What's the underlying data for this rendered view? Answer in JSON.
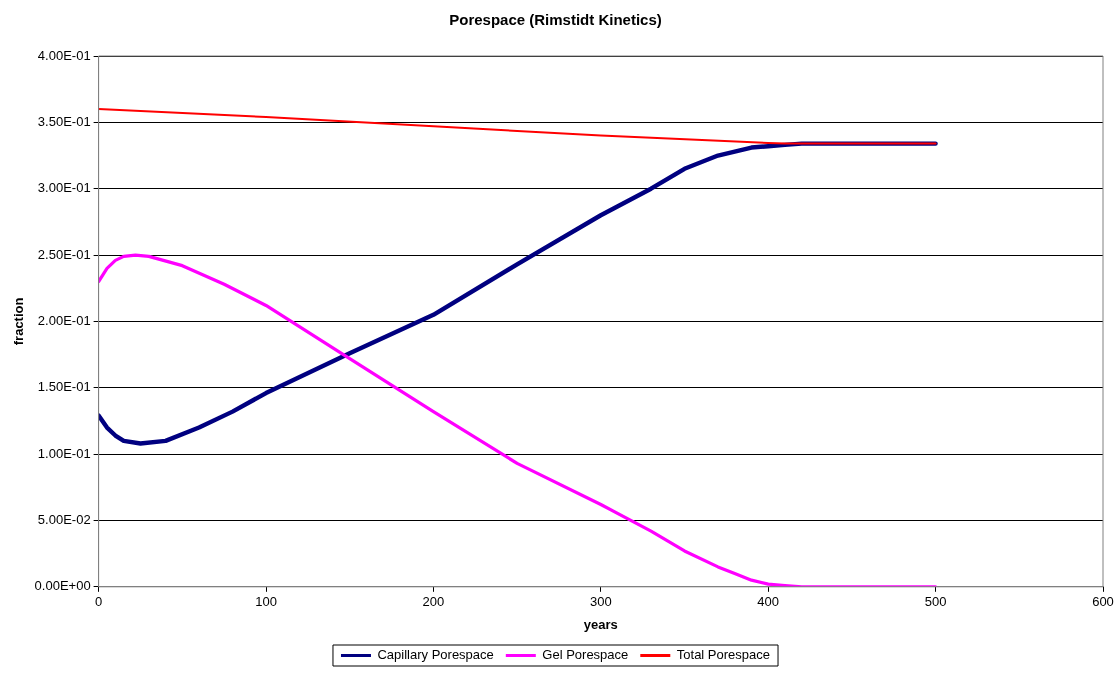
{
  "chart_data": {
    "type": "line",
    "title": "Porespace (Rimstidt Kinetics)",
    "xlabel": "years",
    "ylabel": "fraction",
    "xlim": [
      0,
      600
    ],
    "xticks": [
      0,
      100,
      200,
      300,
      400,
      500,
      600
    ],
    "ylim": [
      0,
      0.4
    ],
    "yticks": [
      {
        "value": 0,
        "label": "0.00E+00"
      },
      {
        "value": 0.05,
        "label": "5.00E-02"
      },
      {
        "value": 0.1,
        "label": "1.00E-01"
      },
      {
        "value": 0.15,
        "label": "1.50E-01"
      },
      {
        "value": 0.2,
        "label": "2.00E-01"
      },
      {
        "value": 0.25,
        "label": "2.50E-01"
      },
      {
        "value": 0.3,
        "label": "3.00E-01"
      },
      {
        "value": 0.35,
        "label": "3.50E-01"
      },
      {
        "value": 0.4,
        "label": "4.00E-01"
      }
    ],
    "grid": "y",
    "legend": "bottom",
    "marker": "none",
    "line_style": "solid",
    "series": [
      {
        "name": "Capillary Porespace",
        "color": "#000080",
        "x": [
          0,
          5,
          10,
          15,
          25,
          40,
          60,
          80,
          100,
          150,
          200,
          250,
          300,
          330,
          350,
          370,
          390,
          400,
          410,
          420,
          450,
          500
        ],
        "values": [
          0.129,
          0.12,
          0.114,
          0.11,
          0.108,
          0.11,
          0.12,
          0.132,
          0.146,
          0.176,
          0.205,
          0.243,
          0.28,
          0.3,
          0.315,
          0.325,
          0.331,
          0.332,
          0.333,
          0.334,
          0.334,
          0.334
        ]
      },
      {
        "name": "Gel Porespace",
        "color": "#ff00ff",
        "x": [
          0,
          5,
          10,
          15,
          22,
          30,
          50,
          75,
          100,
          150,
          200,
          250,
          300,
          330,
          350,
          370,
          380,
          390,
          400,
          410,
          420,
          450,
          500
        ],
        "values": [
          0.23,
          0.24,
          0.246,
          0.249,
          0.25,
          0.249,
          0.242,
          0.228,
          0.212,
          0.172,
          0.132,
          0.093,
          0.062,
          0.042,
          0.027,
          0.015,
          0.01,
          0.005,
          0.002,
          0.001,
          0,
          0,
          0
        ]
      },
      {
        "name": "Total Porespace",
        "color": "#ff0000",
        "x": [
          0,
          100,
          200,
          300,
          400,
          410,
          450,
          500
        ],
        "values": [
          0.36,
          0.354,
          0.347,
          0.34,
          0.3345,
          0.334,
          0.334,
          0.334
        ]
      }
    ]
  }
}
